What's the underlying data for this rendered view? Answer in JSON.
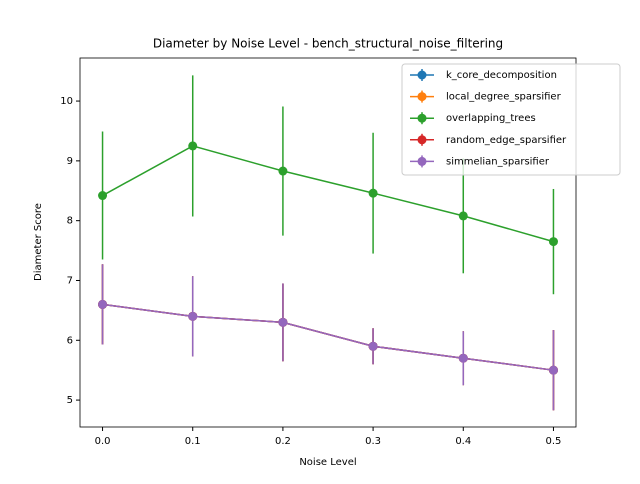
{
  "chart_data": {
    "type": "errorbar-line",
    "title": "Diameter by Noise Level - bench_structural_noise_filtering",
    "xlabel": "Noise Level",
    "ylabel": "Diameter Score",
    "x": [
      0.0,
      0.1,
      0.2,
      0.3,
      0.4,
      0.5
    ],
    "series": [
      {
        "name": "k_core_decomposition",
        "color": "#1f77b4",
        "values": [
          6.6,
          6.4,
          6.3,
          5.9,
          5.7,
          5.5
        ],
        "errors": [
          0.67,
          0.67,
          0.65,
          0.3,
          0.45,
          0.67
        ]
      },
      {
        "name": "local_degree_sparsifier",
        "color": "#ff7f0e",
        "values": [
          6.6,
          6.4,
          6.3,
          5.9,
          5.7,
          5.5
        ],
        "errors": [
          0.67,
          0.67,
          0.65,
          0.3,
          0.45,
          0.67
        ]
      },
      {
        "name": "overlapping_trees",
        "color": "#2ca02c",
        "values": [
          8.42,
          9.25,
          8.83,
          8.46,
          8.08,
          7.65
        ],
        "errors": [
          1.07,
          1.18,
          1.08,
          1.01,
          0.96,
          0.88
        ]
      },
      {
        "name": "random_edge_sparsifier",
        "color": "#d62728",
        "values": [
          6.6,
          6.4,
          6.3,
          5.9,
          5.7,
          5.5
        ],
        "errors": [
          0.67,
          0.67,
          0.65,
          0.3,
          0.45,
          0.67
        ]
      },
      {
        "name": "simmelian_sparsifier",
        "color": "#9467bd",
        "values": [
          6.6,
          6.4,
          6.3,
          5.9,
          5.7,
          5.5
        ],
        "errors": [
          0.67,
          0.67,
          0.65,
          0.3,
          0.45,
          0.67
        ]
      }
    ],
    "xlim": [
      -0.025,
      0.525
    ],
    "xticks": [
      {
        "value": 0,
        "label": "0.0"
      },
      0.1,
      0.2,
      0.3,
      0.4,
      0.5
    ],
    "ylim": [
      4.55,
      10.72
    ],
    "yticks": [
      5,
      6,
      7,
      8,
      9,
      10
    ],
    "legend": "upper right"
  }
}
